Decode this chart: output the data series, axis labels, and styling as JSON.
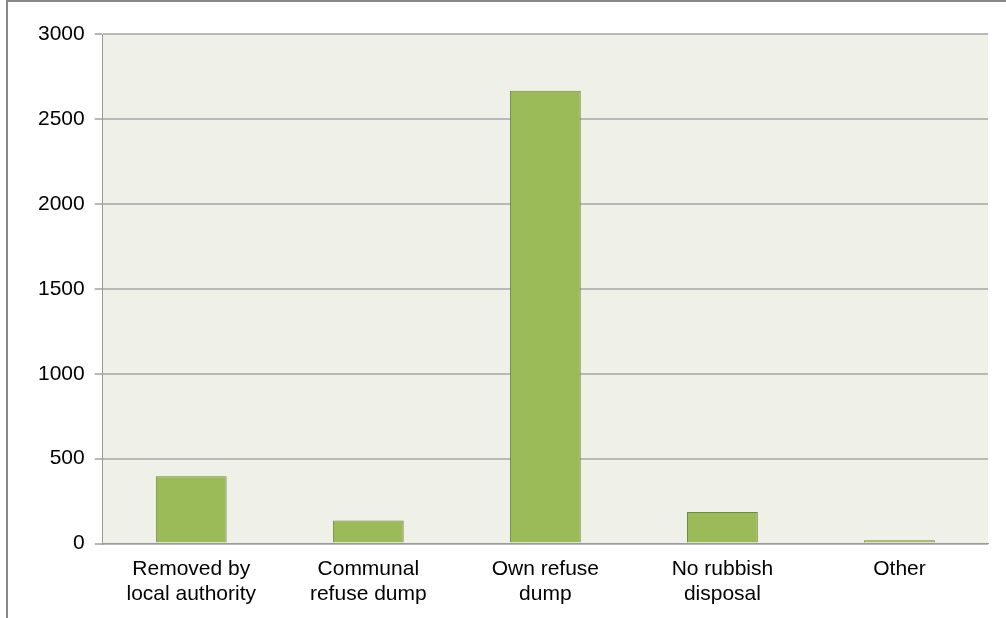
{
  "chart_data": {
    "type": "bar",
    "categories": [
      "Removed by local authority",
      "Communal refuse dump",
      "Own refuse dump",
      "No rubbish disposal",
      "Other"
    ],
    "values": [
      396,
      136,
      2666,
      186,
      20
    ],
    "color": "#9bbb59",
    "ylim": [
      0,
      3000
    ],
    "yticks": [
      0,
      500,
      1000,
      1500,
      2000,
      2500,
      3000
    ],
    "grid": "y",
    "legend": false
  }
}
